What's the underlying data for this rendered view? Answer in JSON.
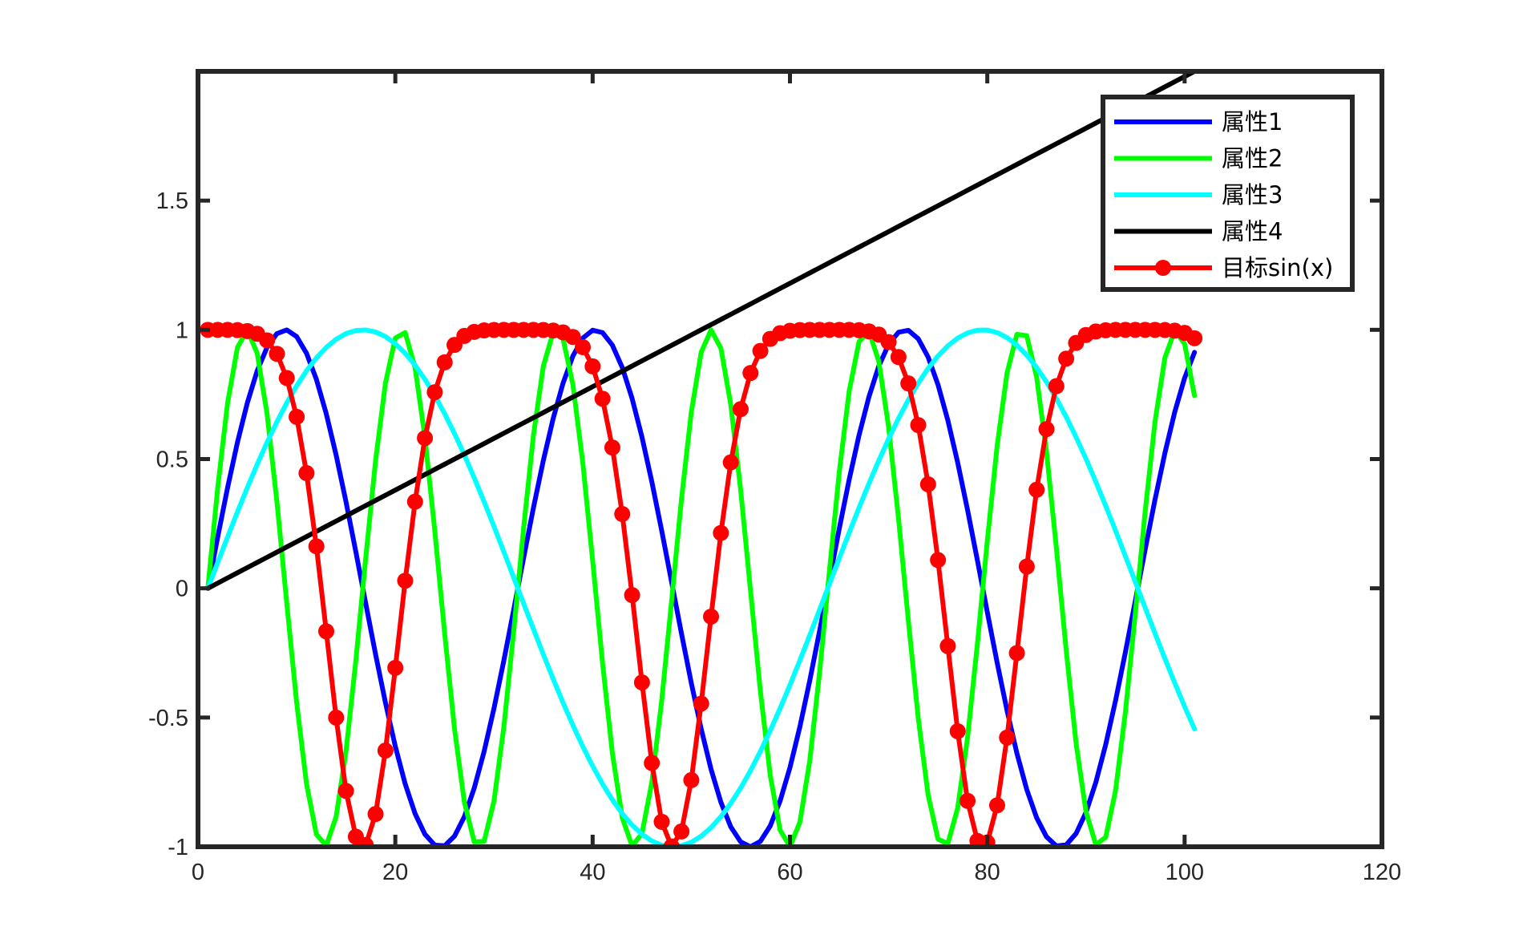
{
  "chart_data": {
    "type": "line",
    "title": "",
    "xlabel": "",
    "ylabel": "",
    "xlim": [
      0,
      120
    ],
    "ylim": [
      -1,
      2
    ],
    "xticks": [
      0,
      20,
      40,
      60,
      80,
      100,
      120
    ],
    "yticks": [
      -1,
      -0.5,
      0,
      0.5,
      1,
      1.5
    ],
    "xtick_labels": [
      "0",
      "20",
      "40",
      "60",
      "80",
      "100",
      "120"
    ],
    "ytick_labels": [
      "-1",
      "-0.5",
      "0",
      "0.5",
      "1",
      "1.5"
    ],
    "grid": false,
    "box": true,
    "legend_position": "top-right",
    "x_range": [
      1,
      101
    ],
    "series": [
      {
        "name": "属性1",
        "color": "#0000ff",
        "formula": "sin(0.2*(x-1))",
        "marker": "none"
      },
      {
        "name": "属性2",
        "color": "#00ff00",
        "formula": "sin(0.4*(x-1))",
        "marker": "none"
      },
      {
        "name": "属性3",
        "color": "#00ffff",
        "formula": "sin(0.1*(x-1))",
        "marker": "none"
      },
      {
        "name": "属性4",
        "color": "#000000",
        "formula": "0.02*(x-1)",
        "marker": "none"
      },
      {
        "name": "目标sin(x)",
        "color": "#ff0000",
        "formula": "cos(0.2*(x-1) - 0.98*sin(0.2*(x-1)))",
        "marker": "circle"
      }
    ]
  }
}
